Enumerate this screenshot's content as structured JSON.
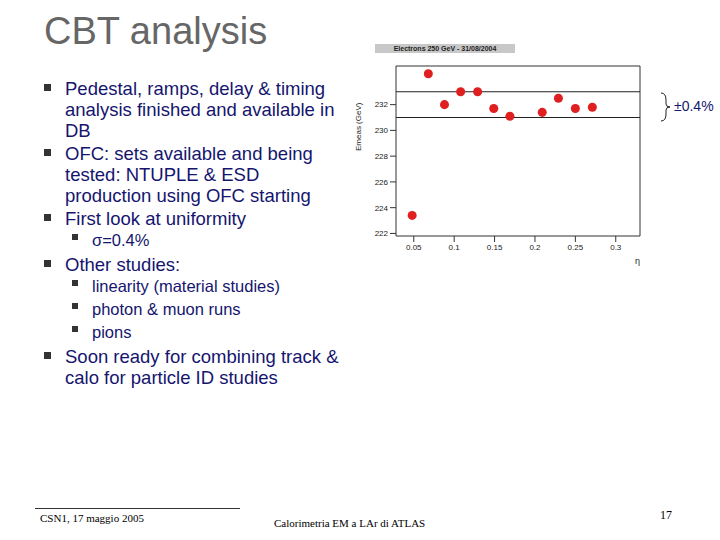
{
  "title": "CBT analysis",
  "bullets": [
    {
      "text": "Pedestal, ramps, delay & timing analysis finished and available in DB"
    },
    {
      "text": "OFC: sets available and being tested: NTUPLE & ESD production using OFC starting"
    },
    {
      "text": "First look at uniformity",
      "sub": [
        "σ=0.4%"
      ]
    },
    {
      "text": "Other studies:",
      "sub": [
        "linearity (material studies)",
        "photon & muon runs",
        "pions"
      ]
    },
    {
      "text": "Soon ready for combining track & calo for particle ID studies"
    }
  ],
  "footer": {
    "left": "CSN1, 17 maggio 2005",
    "center": "Calorimetria EM a LAr di ATLAS",
    "page": "17"
  },
  "chart_data": {
    "type": "scatter",
    "title": "Electrons 250 GeV - 31/08/2004",
    "x_label": "η",
    "y_label": "Emeas (GeV)",
    "x": [
      0.048,
      0.068,
      0.088,
      0.108,
      0.129,
      0.149,
      0.169,
      0.209,
      0.229,
      0.25,
      0.271
    ],
    "values": [
      223.4,
      234.4,
      232.0,
      233.0,
      233.0,
      231.7,
      231.1,
      231.4,
      232.5,
      231.7,
      231.8
    ],
    "xlim": [
      0.028,
      0.33
    ],
    "ylim": [
      221.8,
      235
    ],
    "xticks": [
      0.05,
      0.1,
      0.15,
      0.2,
      0.25,
      0.3
    ],
    "yticks": [
      222,
      224,
      226,
      228,
      230,
      232
    ],
    "color": "#e02020",
    "marker": "circle",
    "band": [
      231,
      233
    ],
    "annotation": "±0.4%"
  }
}
